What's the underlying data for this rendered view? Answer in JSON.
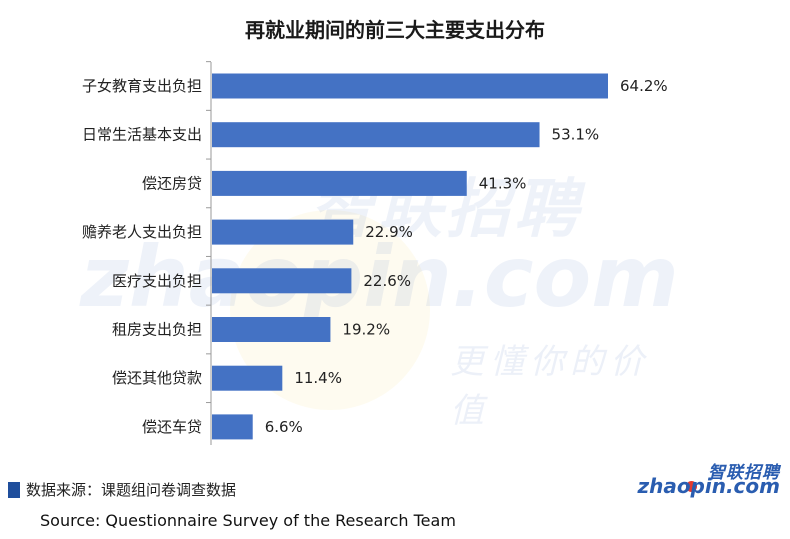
{
  "title": "再就业期间的前三大主要支出分布",
  "chart_data": {
    "type": "bar",
    "orientation": "horizontal",
    "categories": [
      "子女教育支出负担",
      "日常生活基本支出",
      "偿还房贷",
      "赡养老人支出负担",
      "医疗支出负担",
      "租房支出负担",
      "偿还其他贷款",
      "偿还车贷"
    ],
    "values": [
      64.2,
      53.1,
      41.3,
      22.9,
      22.6,
      19.2,
      11.4,
      6.6
    ],
    "value_labels": [
      "64.2%",
      "53.1%",
      "41.3%",
      "22.9%",
      "22.6%",
      "19.2%",
      "11.4%",
      "6.6%"
    ],
    "unit": "%",
    "bar_color": "#4472c4",
    "xlim": [
      0,
      70
    ],
    "grid": false,
    "legend": "none"
  },
  "watermark": {
    "cn": "智联招聘",
    "en": "zhaopin.com",
    "slogan": "更懂你的价值"
  },
  "source_cn": "数据来源：课题组问卷调查数据",
  "source_en": "Source: Questionnaire Survey of the Research Team",
  "logo": {
    "cn": "智联招聘",
    "en": "zhaopin.com",
    "colors": {
      "text": "#2a5db0",
      "dot": "#e63a2e"
    }
  },
  "colors": {
    "accent_square": "#1f4e9c"
  }
}
